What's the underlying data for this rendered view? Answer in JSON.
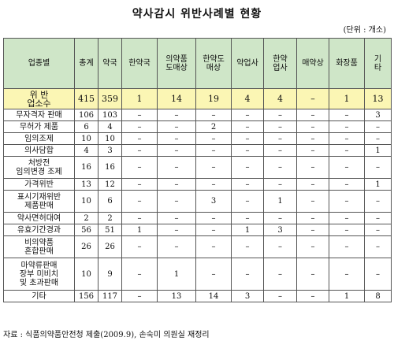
{
  "title": "약사감시 위반사례별 현황",
  "unit": "(단위 : 개소)",
  "headers": [
    "업종별",
    "총계",
    "약국",
    "한약국",
    "의약품\n도매상",
    "한약도\n매상",
    "약업사",
    "한약\n업사",
    "매약상",
    "화장품",
    "기\n타"
  ],
  "total_row": [
    "위 반\n업소수",
    "415",
    "359",
    "1",
    "14",
    "19",
    "4",
    "4",
    "–",
    "1",
    "13"
  ],
  "rows": [
    [
      "무자격자 판매",
      "106",
      "103",
      "–",
      "–",
      "–",
      "–",
      "–",
      "–",
      "–",
      "3"
    ],
    [
      "무허가 제품",
      "6",
      "4",
      "–",
      "–",
      "2",
      "–",
      "–",
      "–",
      "–",
      "–"
    ],
    [
      "임의조제",
      "10",
      "10",
      "–",
      "–",
      "–",
      "–",
      "–",
      "–",
      "–",
      "–"
    ],
    [
      "의사담합",
      "4",
      "3",
      "–",
      "–",
      "–",
      "–",
      "–",
      "–",
      "–",
      "1"
    ],
    [
      "처방전\n임의변경 조제",
      "16",
      "16",
      "–",
      "–",
      "–",
      "–",
      "–",
      "–",
      "–",
      "–"
    ],
    [
      "가격위반",
      "13",
      "12",
      "–",
      "–",
      "–",
      "–",
      "–",
      "–",
      "–",
      "1"
    ],
    [
      "표시기재위반\n제품판매",
      "10",
      "6",
      "–",
      "–",
      "3",
      "–",
      "1",
      "–",
      "–",
      "–"
    ],
    [
      "약사면허대여",
      "2",
      "2",
      "–",
      "–",
      "–",
      "–",
      "–",
      "–",
      "–",
      "–"
    ],
    [
      "유효기간경과",
      "56",
      "51",
      "1",
      "–",
      "–",
      "1",
      "3",
      "–",
      "–",
      "–"
    ],
    [
      "비의약품\n혼합판매",
      "26",
      "26",
      "–",
      "–",
      "–",
      "–",
      "–",
      "–",
      "–",
      "–"
    ],
    [
      "마약류판매\n장부 미비치\n및 초과판매",
      "10",
      "9",
      "–",
      "1",
      "–",
      "–",
      "–",
      "–",
      "–",
      "–"
    ],
    [
      "기타",
      "156",
      "117",
      "–",
      "13",
      "14",
      "3",
      "–",
      "–",
      "1",
      "8"
    ]
  ],
  "source": "자료 : 식품의약품안전청 제출(2009.9), 손숙미 의원실 재정리"
}
